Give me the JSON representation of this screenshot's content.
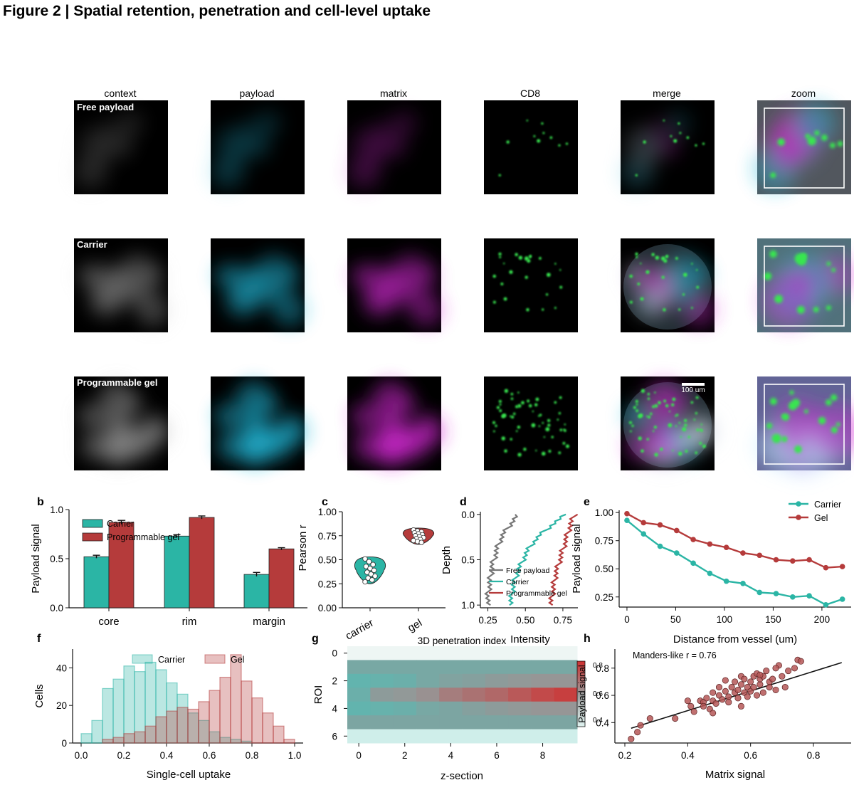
{
  "figure_title": "Figure 2 | Spatial retention, penetration and cell-level uptake",
  "image_panel": {
    "columns": [
      "context",
      "payload",
      "matrix",
      "CD8",
      "merge",
      "zoom"
    ],
    "rows": [
      "Free payload",
      "Carrier",
      "Programmable gel"
    ],
    "scale_bar": "100 um"
  },
  "colors": {
    "carrier": "#2bb5a5",
    "gel": "#b53b3b",
    "free": "#777777",
    "payload_channel": "#22b8d8",
    "matrix_channel": "#d62ad6",
    "cd8_channel": "#39e64f"
  },
  "chart_data": [
    {
      "panel": "b",
      "type": "bar",
      "categories": [
        "core",
        "rim",
        "margin"
      ],
      "series": [
        {
          "name": "Carrier",
          "values": [
            0.52,
            0.73,
            0.34
          ],
          "errors": [
            0.015,
            0.015,
            0.02
          ]
        },
        {
          "name": "Programmable gel",
          "values": [
            0.87,
            0.92,
            0.6
          ],
          "errors": [
            0.02,
            0.015,
            0.012
          ]
        }
      ],
      "ylabel": "Payload signal",
      "yticks": [
        "0.0",
        "0.5",
        "1.0"
      ],
      "ylim": [
        0,
        1.0
      ],
      "legend": "top-left"
    },
    {
      "panel": "c",
      "type": "violin",
      "categories": [
        "carrier",
        "gel"
      ],
      "points": [
        [
          0.51,
          0.48,
          0.45,
          0.43,
          0.41,
          0.39,
          0.37,
          0.35,
          0.33,
          0.31,
          0.29,
          0.27
        ],
        [
          0.81,
          0.8,
          0.79,
          0.78,
          0.77,
          0.76,
          0.75,
          0.74,
          0.73,
          0.72,
          0.71,
          0.7,
          0.69,
          0.68
        ]
      ],
      "ylabel": "Pearson r",
      "yticks": [
        "0.00",
        "0.25",
        "0.50",
        "0.75",
        "1.00"
      ],
      "ylim": [
        0,
        1.0
      ]
    },
    {
      "panel": "d",
      "type": "line",
      "series": [
        {
          "name": "Free payload",
          "x": [
            0.45,
            0.4,
            0.35,
            0.32,
            0.3,
            0.28,
            0.27,
            0.26,
            0.25,
            0.25
          ],
          "y": [
            0.0,
            0.1,
            0.2,
            0.3,
            0.4,
            0.5,
            0.6,
            0.7,
            0.8,
            1.0
          ]
        },
        {
          "name": "Carrier",
          "x": [
            0.77,
            0.68,
            0.6,
            0.54,
            0.5,
            0.47,
            0.44,
            0.42,
            0.41,
            0.4
          ],
          "y": [
            0.0,
            0.1,
            0.2,
            0.3,
            0.4,
            0.5,
            0.6,
            0.7,
            0.8,
            1.0
          ]
        },
        {
          "name": "Programmable gel",
          "x": [
            0.83,
            0.8,
            0.78,
            0.76,
            0.74,
            0.72,
            0.7,
            0.69,
            0.68,
            0.67
          ],
          "y": [
            0.0,
            0.1,
            0.2,
            0.3,
            0.4,
            0.5,
            0.6,
            0.7,
            0.8,
            1.0
          ]
        }
      ],
      "xlabel": "Intensity",
      "ylabel": "Depth",
      "xticks": [
        "0.25",
        "0.50",
        "0.75"
      ],
      "yticks": [
        "0.0",
        "0.5",
        "1.0"
      ],
      "xlim": [
        0.2,
        0.85
      ],
      "ylim": [
        1.03,
        -0.03
      ],
      "legend": "bottom-left"
    },
    {
      "panel": "e",
      "type": "line",
      "x": [
        0,
        17,
        34,
        51,
        68,
        85,
        102,
        119,
        136,
        153,
        170,
        187,
        204,
        221
      ],
      "series": [
        {
          "name": "Carrier",
          "values": [
            0.93,
            0.81,
            0.7,
            0.64,
            0.55,
            0.46,
            0.39,
            0.37,
            0.29,
            0.28,
            0.25,
            0.26,
            0.18,
            0.23
          ]
        },
        {
          "name": "Gel",
          "values": [
            0.99,
            0.91,
            0.89,
            0.84,
            0.76,
            0.72,
            0.69,
            0.64,
            0.62,
            0.58,
            0.57,
            0.58,
            0.51,
            0.52
          ]
        }
      ],
      "xlabel": "Distance from vessel (um)",
      "ylabel": "Payload signal",
      "xticks": [
        "0",
        "50",
        "100",
        "150",
        "200"
      ],
      "yticks": [
        "0.25",
        "0.50",
        "0.75",
        "1.00"
      ],
      "xlim": [
        -8,
        230
      ],
      "ylim": [
        0.16,
        1.02
      ],
      "legend": "top-right"
    },
    {
      "panel": "f",
      "type": "histogram",
      "bin_edges": [
        0.0,
        0.05,
        0.1,
        0.15,
        0.2,
        0.25,
        0.3,
        0.35,
        0.4,
        0.45,
        0.5,
        0.55,
        0.6,
        0.65,
        0.7,
        0.75,
        0.8,
        0.85,
        0.9,
        0.95,
        1.0
      ],
      "series": [
        {
          "name": "Carrier",
          "counts": [
            5,
            12,
            29,
            34,
            41,
            38,
            43,
            39,
            32,
            26,
            16,
            12,
            6,
            3,
            2,
            1,
            0,
            0,
            0,
            0
          ]
        },
        {
          "name": "Gel",
          "counts": [
            0,
            0,
            2,
            3,
            5,
            6,
            9,
            14,
            17,
            19,
            18,
            22,
            28,
            35,
            47,
            33,
            24,
            16,
            9,
            2
          ]
        }
      ],
      "xlabel": "Single-cell uptake",
      "ylabel": "Cells",
      "xticks": [
        "0.0",
        "0.2",
        "0.4",
        "0.6",
        "0.8",
        "1.0"
      ],
      "yticks": [
        "0",
        "20",
        "40"
      ],
      "xlim": [
        -0.04,
        1.04
      ],
      "ylim": [
        0,
        50
      ],
      "legend": "top"
    },
    {
      "panel": "g",
      "type": "heatmap",
      "title": "3D penetration index",
      "xlabel": "z-section",
      "ylabel": "ROI",
      "xticks": [
        "0",
        "2",
        "4",
        "6",
        "8"
      ],
      "yticks": [
        "0",
        "2",
        "4",
        "6"
      ],
      "matrix": [
        [
          -0.05,
          -0.05,
          -0.05,
          -0.05,
          -0.05,
          -0.05,
          -0.05,
          -0.05,
          -0.05,
          -0.05
        ],
        [
          -0.35,
          -0.35,
          -0.35,
          -0.35,
          -0.35,
          -0.35,
          -0.35,
          -0.35,
          -0.35,
          -0.35
        ],
        [
          -0.6,
          -0.55,
          -0.5,
          -0.35,
          -0.25,
          -0.2,
          -0.1,
          -0.05,
          0.0,
          0.0
        ],
        [
          -0.5,
          -0.1,
          -0.05,
          0.05,
          0.25,
          0.35,
          0.45,
          0.6,
          0.75,
          0.85
        ],
        [
          -0.6,
          -0.55,
          -0.5,
          -0.35,
          -0.3,
          -0.2,
          -0.1,
          -0.05,
          0.0,
          0.0
        ],
        [
          -0.3,
          -0.3,
          -0.3,
          -0.3,
          -0.3,
          -0.3,
          -0.3,
          -0.3,
          -0.3,
          -0.3
        ],
        [
          -0.1,
          -0.1,
          -0.1,
          -0.1,
          -0.1,
          -0.1,
          -0.1,
          -0.1,
          -0.1,
          -0.1
        ]
      ],
      "colorbar": {
        "label": "Payload signal",
        "ticks": [
          "0.8",
          "0.6",
          "0.4"
        ]
      }
    },
    {
      "panel": "h",
      "type": "scatter",
      "annotation": "Manders-like r = 0.76",
      "xlabel": "Matrix signal",
      "ylabel": "Payload signal",
      "xticks": [
        "0.2",
        "0.4",
        "0.6",
        "0.8"
      ],
      "yticks": [
        "0.4",
        "0.6",
        "0.8"
      ],
      "xlim": [
        0.2,
        0.92
      ],
      "ylim": [
        0.25,
        0.94
      ],
      "fit": {
        "slope": 0.72,
        "intercept": 0.2
      },
      "x": [
        0.22,
        0.24,
        0.25,
        0.28,
        0.36,
        0.4,
        0.41,
        0.42,
        0.44,
        0.45,
        0.45,
        0.46,
        0.47,
        0.48,
        0.48,
        0.49,
        0.5,
        0.5,
        0.51,
        0.52,
        0.53,
        0.53,
        0.54,
        0.55,
        0.55,
        0.56,
        0.56,
        0.57,
        0.57,
        0.58,
        0.58,
        0.59,
        0.59,
        0.6,
        0.6,
        0.61,
        0.61,
        0.62,
        0.62,
        0.63,
        0.63,
        0.64,
        0.64,
        0.65,
        0.66,
        0.66,
        0.67,
        0.68,
        0.69,
        0.7,
        0.71,
        0.72,
        0.74,
        0.75,
        0.76,
        0.48,
        0.52,
        0.57,
        0.63,
        0.68
      ],
      "y": [
        0.28,
        0.33,
        0.38,
        0.43,
        0.43,
        0.56,
        0.52,
        0.48,
        0.56,
        0.55,
        0.52,
        0.58,
        0.5,
        0.62,
        0.56,
        0.54,
        0.6,
        0.66,
        0.57,
        0.63,
        0.59,
        0.55,
        0.66,
        0.7,
        0.62,
        0.64,
        0.58,
        0.74,
        0.68,
        0.62,
        0.72,
        0.66,
        0.59,
        0.7,
        0.63,
        0.74,
        0.66,
        0.76,
        0.6,
        0.68,
        0.72,
        0.74,
        0.62,
        0.78,
        0.7,
        0.66,
        0.72,
        0.64,
        0.82,
        0.74,
        0.66,
        0.78,
        0.8,
        0.86,
        0.85,
        0.47,
        0.71,
        0.52,
        0.75,
        0.8
      ]
    }
  ]
}
